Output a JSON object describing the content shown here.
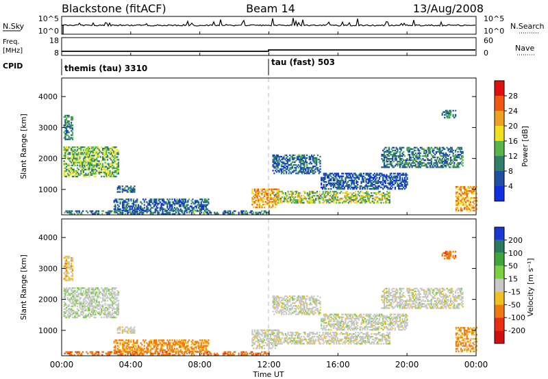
{
  "header": {
    "station": "Blackstone (fitACF)",
    "beam": "Beam 14",
    "date": "13/Aug/2008"
  },
  "nsky_panel": {
    "left_label": "N.Sky",
    "left_ticks": [
      "10^5",
      "10^0"
    ],
    "right_ticks": [
      "10^5",
      "10^0"
    ],
    "right_label": "N.Search"
  },
  "freq_panel": {
    "left_label_line1": "Freq.",
    "left_label_line2": "[MHz]",
    "left_ticks": [
      "18",
      "8"
    ],
    "right_ticks": [
      "60",
      "0"
    ],
    "right_label": "Nave"
  },
  "cpid": {
    "label": "CPID",
    "modes": [
      {
        "name": "themis (tau) 3310",
        "start_hour": 0
      },
      {
        "name": "tau (fast) 503",
        "start_hour": 12
      }
    ]
  },
  "time_axis": {
    "tick_labels": [
      "00:00",
      "04:00",
      "08:00",
      "12:00",
      "16:00",
      "20:00",
      "00:00"
    ],
    "label": "Time UT",
    "range_hours": [
      0,
      24
    ]
  },
  "range_axis": {
    "label": "Slant Range [km]",
    "tick_labels": [
      "1000",
      "2000",
      "3000",
      "4000"
    ],
    "range_km": [
      180,
      4600
    ]
  },
  "power_colorbar": {
    "label": "Power [dB]",
    "tick_labels": [
      "4",
      "8",
      "12",
      "16",
      "20",
      "24",
      "28"
    ],
    "colors": [
      "#1030e0",
      "#1f4fa5",
      "#2f7f6a",
      "#58b54a",
      "#f0e020",
      "#f0a020",
      "#f05a10",
      "#e01010"
    ]
  },
  "velocity_colorbar": {
    "label": "Velocity [m s⁻¹]",
    "tick_labels": [
      "200",
      "100",
      "50",
      "15",
      "-15",
      "-50",
      "-100",
      "-200"
    ],
    "colors": [
      "#1838d0",
      "#2a7a60",
      "#3ea63a",
      "#7cd040",
      "#c8c8c8",
      "#f0c020",
      "#f07a10",
      "#e83010",
      "#d01010"
    ]
  },
  "chart_data": {
    "type": "heatmap",
    "title": "Blackstone (fitACF)  Beam 14  13/Aug/2008",
    "xlabel": "Time UT",
    "ylabel": "Slant Range [km]",
    "xlim_hours": [
      0,
      24
    ],
    "ylim_km": [
      180,
      4600
    ],
    "panels": [
      "power",
      "velocity"
    ],
    "echo_regions": [
      {
        "t0": 0.1,
        "t1": 3.3,
        "r0": 1400,
        "r1": 2350,
        "power": 14,
        "velocity": 5
      },
      {
        "t0": 0.1,
        "t1": 0.6,
        "r0": 2600,
        "r1": 3400,
        "power": 10,
        "velocity": -20
      },
      {
        "t0": 3.2,
        "t1": 4.2,
        "r0": 900,
        "r1": 1100,
        "power": 8,
        "velocity": -5
      },
      {
        "t0": 3.0,
        "t1": 8.5,
        "r0": 300,
        "r1": 700,
        "power": 7,
        "velocity": -40
      },
      {
        "t0": 0.0,
        "t1": 12.0,
        "r0": 190,
        "r1": 300,
        "power": 9,
        "velocity": -60
      },
      {
        "t0": 11.0,
        "t1": 12.6,
        "r0": 400,
        "r1": 1000,
        "power": 22,
        "velocity": 0
      },
      {
        "t0": 12.3,
        "t1": 19.0,
        "r0": 550,
        "r1": 950,
        "power": 16,
        "velocity": 0
      },
      {
        "t0": 12.2,
        "t1": 15.0,
        "r0": 1500,
        "r1": 2100,
        "power": 8,
        "velocity": 0
      },
      {
        "t0": 15.0,
        "t1": 20.0,
        "r0": 1000,
        "r1": 1500,
        "power": 6,
        "velocity": 0
      },
      {
        "t0": 18.5,
        "t1": 23.2,
        "r0": 1700,
        "r1": 2350,
        "power": 9,
        "velocity": 0
      },
      {
        "t0": 22.8,
        "t1": 24.0,
        "r0": 300,
        "r1": 1100,
        "power": 22,
        "velocity": -30
      },
      {
        "t0": 22.0,
        "t1": 22.8,
        "r0": 3300,
        "r1": 3550,
        "power": 10,
        "velocity": -60
      }
    ]
  }
}
